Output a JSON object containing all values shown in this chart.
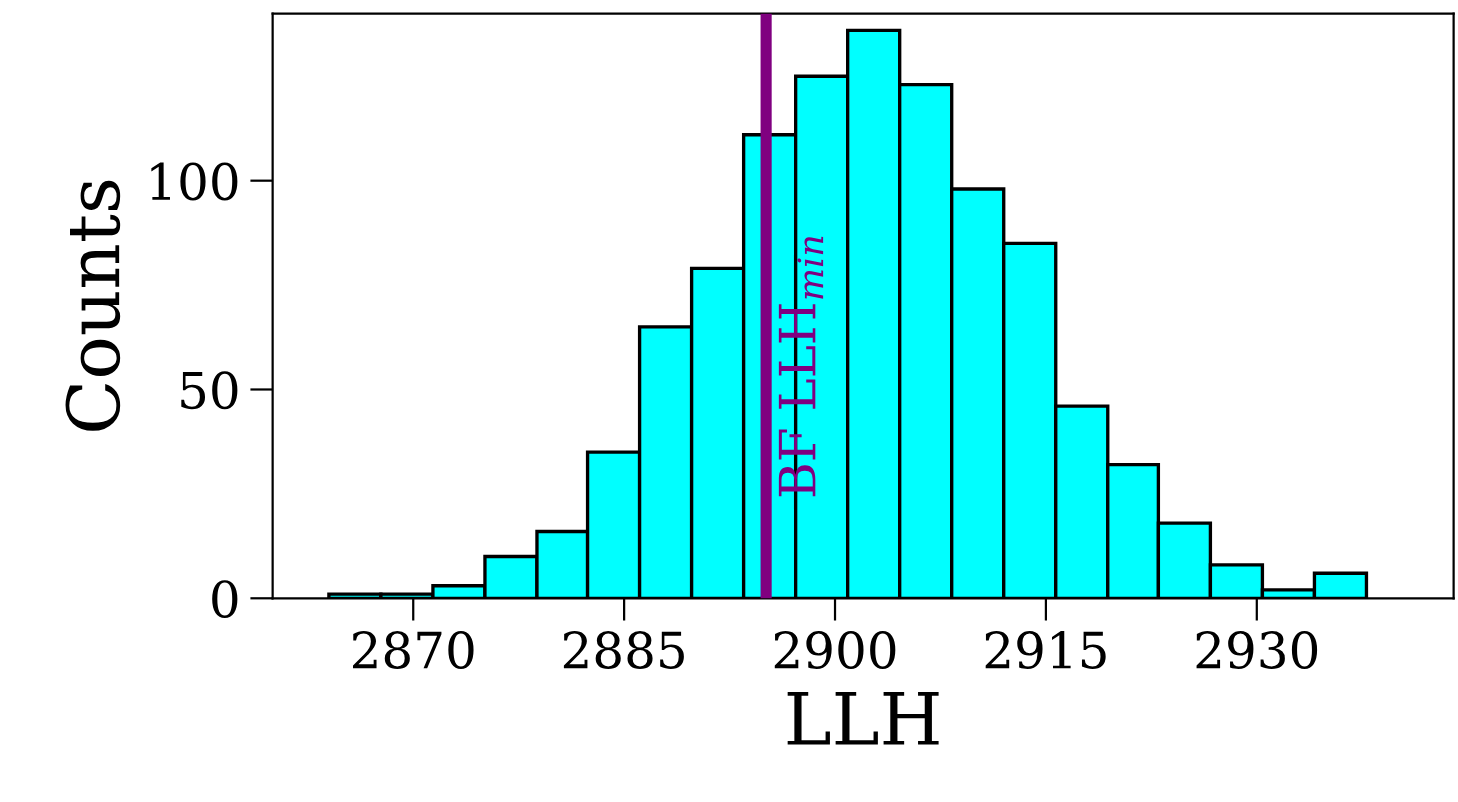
{
  "chart_data": {
    "type": "histogram",
    "xlabel": "LLH",
    "ylabel": "Counts",
    "bins": [
      2864.0,
      2867.7,
      2871.4,
      2875.1,
      2878.8,
      2882.4,
      2886.1,
      2889.8,
      2893.5,
      2897.2,
      2900.9,
      2904.6,
      2908.3,
      2912.0,
      2915.7,
      2919.4,
      2923.0,
      2926.7,
      2930.4,
      2934.1,
      2937.8
    ],
    "values": [
      1,
      1,
      3,
      10,
      16,
      35,
      65,
      79,
      111,
      125,
      136,
      123,
      98,
      85,
      46,
      32,
      18,
      8,
      2,
      6
    ],
    "color": "#00ffff",
    "xlim": [
      2860,
      2944
    ],
    "xticks": [
      2870,
      2885,
      2900,
      2915,
      2930
    ],
    "ylim": [
      0,
      140
    ],
    "yticks": [
      0,
      50,
      100
    ],
    "ref_lines": [
      {
        "axis": "x",
        "value": 2895.1,
        "label": "BF LLH$_{min}$",
        "color": "#800080"
      }
    ],
    "grid": false,
    "legend": false
  }
}
